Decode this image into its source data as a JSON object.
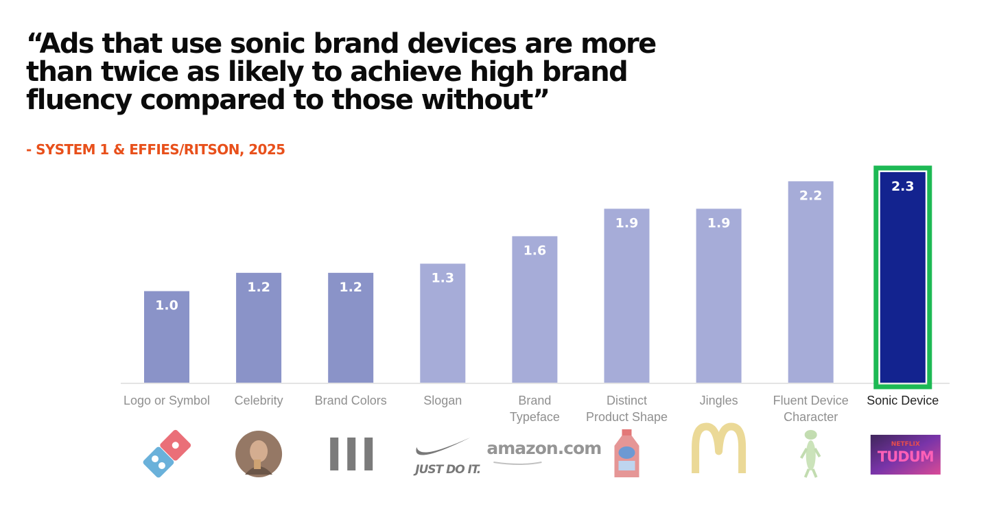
{
  "headline": {
    "lines": [
      "“Ads that use sonic brand devices are more",
      "than twice as likely to achieve high brand",
      "fluency compared to those without”"
    ]
  },
  "citation": "- SYSTEM 1 & EFFIES/RITSON, 2025",
  "colors": {
    "headline": "#0b0b0b",
    "citation": "#e8501b",
    "bar_dark": "#8a93c8",
    "bar_light": "#a6acd8",
    "bar_highlight": "#13238f",
    "highlight_border": "#1db954",
    "label_gray": "#8f8f8f",
    "label_dark": "#222222"
  },
  "chart_data": {
    "type": "bar",
    "categories": [
      "Logo or Symbol",
      "Celebrity",
      "Brand Colors",
      "Slogan",
      "Brand Typeface",
      "Distinct Product Shape",
      "Jingles",
      "Fluent Device Character",
      "Sonic Device"
    ],
    "values": [
      1.0,
      1.2,
      1.2,
      1.3,
      1.6,
      1.9,
      1.9,
      2.2,
      2.3
    ],
    "value_labels": [
      "1.0",
      "1.2",
      "1.2",
      "1.3",
      "1.6",
      "1.9",
      "1.9",
      "2.2",
      "2.3"
    ],
    "highlight_index": 8,
    "ylim": [
      0,
      2.3
    ],
    "grid": false,
    "legend": "none",
    "title": "",
    "xlabel": "",
    "ylabel": "",
    "logos": [
      {
        "name": "dominos-logo-icon"
      },
      {
        "name": "celebrity-portrait-icon"
      },
      {
        "name": "brand-colors-stripes-icon"
      },
      {
        "name": "nike-swoosh-logo-icon",
        "text": "JUST DO IT."
      },
      {
        "name": "amazon-logo-icon",
        "text": "amazon.com"
      },
      {
        "name": "ocean-spray-bottle-icon"
      },
      {
        "name": "mcdonalds-arches-logo-icon"
      },
      {
        "name": "geico-gecko-icon"
      },
      {
        "name": "netflix-tudum-logo-icon",
        "text": "TUDUM",
        "subtext": "NETFLIX"
      }
    ]
  }
}
